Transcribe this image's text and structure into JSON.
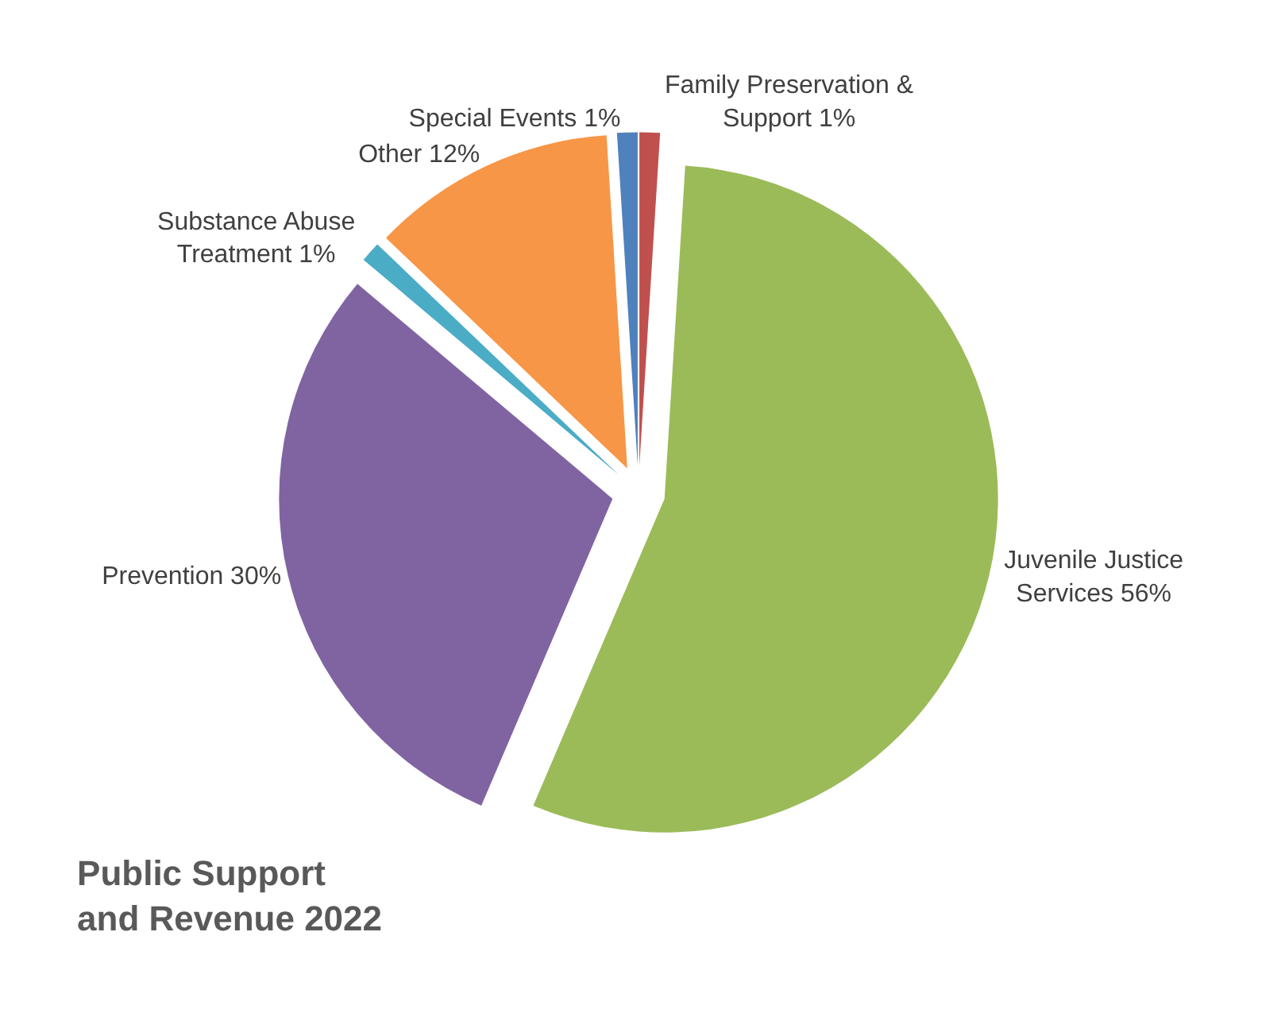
{
  "chart_data": {
    "type": "pie",
    "title": "Public Support and Revenue 2022",
    "categories": [
      "Family Preservation & Support",
      "Juvenile Justice Services",
      "Prevention",
      "Substance Abuse Treatment",
      "Other",
      "Special Events"
    ],
    "values": [
      1,
      56,
      30,
      1,
      12,
      1
    ],
    "value_labels": [
      "1%",
      "56%",
      "30%",
      "1%",
      "12%",
      "1%"
    ],
    "colors": [
      "#c0504d",
      "#9bbb59",
      "#8064a2",
      "#4bacc6",
      "#f79646",
      "#4f81bd"
    ],
    "legend": false
  }
}
